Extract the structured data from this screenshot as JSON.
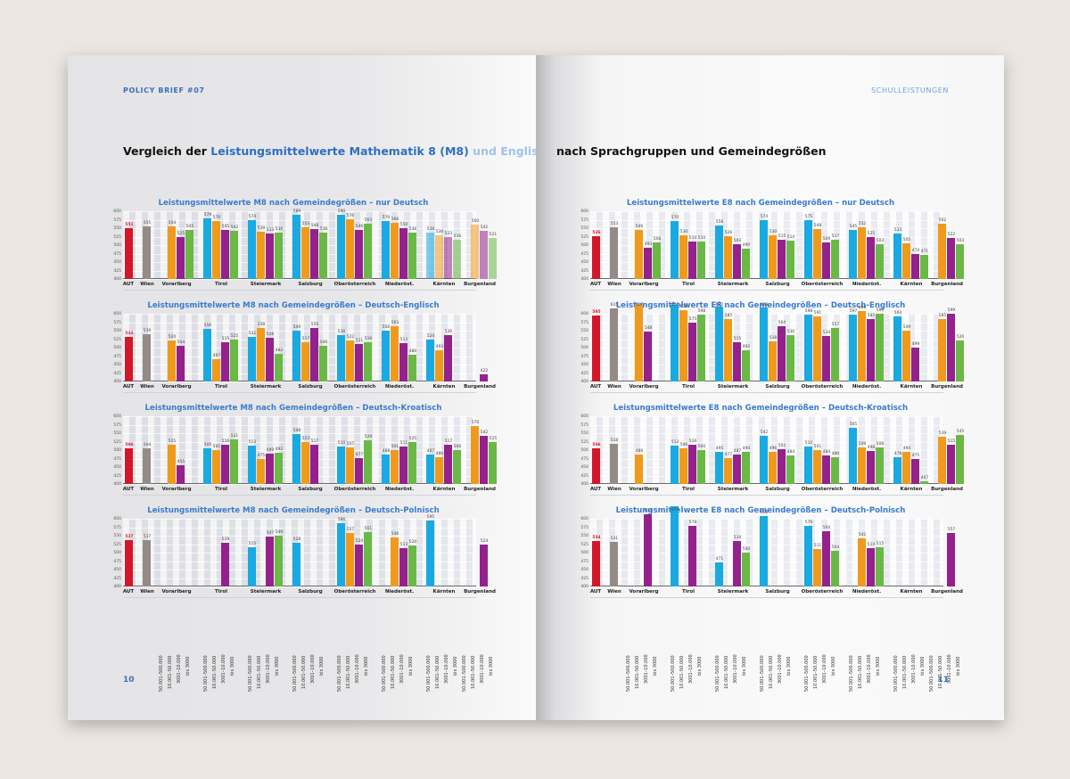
{
  "left_page": {
    "running_head": "POLICY BRIEF #07",
    "heading_part1": "Vergleich der ",
    "heading_part2": "Leistungsmittelwerte Mathematik 8 (M8)",
    "heading_part3": " und Englisch 8 (E8)",
    "page_number": "10"
  },
  "right_page": {
    "running_head": "SCHULLEISTUNGEN",
    "heading": "nach Sprachgruppen und Gemeindegrößen",
    "page_number": "11"
  },
  "legend": {
    "colors": {
      "AUT": "#d3172a",
      "Wien": "#958b86",
      "size_50001_500000": "#1aa9e0",
      "size_10001_50000": "#f09a1c",
      "size_3001_10000": "#94218c",
      "size_bis_3000": "#6ab845"
    },
    "size_classes": [
      "50.001–500.000",
      "10.001–50.000",
      "3001–10.000",
      "bis 3000"
    ]
  },
  "x_categories": [
    "AUT",
    "Wien",
    "Vorarlberg",
    "Tirol",
    "Steiermark",
    "Salzburg",
    "Oberösterreich",
    "Niederöst.",
    "Kärnten",
    "Burgenland"
  ],
  "y_ticks": [
    "600",
    "575",
    "550",
    "525",
    "500",
    "475",
    "450",
    "425",
    "400"
  ],
  "chart_data": [
    {
      "type": "bar",
      "title": "Leistungsmittelwerte M8 nach Gemeindegrößen – nur Deutsch",
      "ylim": [
        400,
        600
      ],
      "aut": 551,
      "wien": 555,
      "regions": [
        {
          "name": "Vorarlberg",
          "values": [
            null,
            554,
            525,
            545
          ]
        },
        {
          "name": "Tirol",
          "values": [
            579,
            570,
            545,
            542
          ]
        },
        {
          "name": "Steiermark",
          "values": [
            574,
            539,
            533,
            536
          ]
        },
        {
          "name": "Salzburg",
          "values": [
            589,
            553,
            548,
            538
          ]
        },
        {
          "name": "Oberösterreich",
          "values": [
            590,
            576,
            546,
            563
          ]
        },
        {
          "name": "Niederöst.",
          "values": [
            570,
            566,
            550,
            536
          ]
        },
        {
          "name": "Kärnten",
          "values": [
            538,
            530,
            523,
            516
          ]
        },
        {
          "name": "Burgenland",
          "values": [
            null,
            560,
            542,
            521
          ]
        }
      ]
    },
    {
      "type": "bar",
      "title": "Leistungsmittelwerte M8 nach Gemeindegrößen – Deutsch-Englisch",
      "ylim": [
        400,
        600
      ],
      "aut": 531,
      "wien": 539,
      "regions": [
        {
          "name": "Vorarlberg",
          "values": [
            null,
            520,
            504,
            null
          ]
        },
        {
          "name": "Tirol",
          "values": [
            556,
            467,
            515,
            525
          ]
        },
        {
          "name": "Steiermark",
          "values": [
            532,
            558,
            528,
            482
          ]
        },
        {
          "name": "Salzburg",
          "values": [
            549,
            517,
            559,
            506
          ]
        },
        {
          "name": "Oberösterreich",
          "values": [
            538,
            522,
            511,
            516
          ]
        },
        {
          "name": "Niederöst.",
          "values": [
            550,
            563,
            513,
            480
          ]
        },
        {
          "name": "Kärnten",
          "values": [
            524,
            493,
            536,
            null
          ]
        },
        {
          "name": "Burgenland",
          "values": [
            null,
            null,
            422,
            null
          ]
        }
      ]
    },
    {
      "type": "bar",
      "title": "Leistungsmittelwerte M8 nach Gemeindegrößen – Deutsch-Kroatisch",
      "ylim": [
        400,
        600
      ],
      "aut": 506,
      "wien": 504,
      "regions": [
        {
          "name": "Vorarlberg",
          "values": [
            null,
            515,
            455,
            null
          ]
        },
        {
          "name": "Tirol",
          "values": [
            505,
            501,
            516,
            531
          ]
        },
        {
          "name": "Steiermark",
          "values": [
            513,
            475,
            489,
            492
          ]
        },
        {
          "name": "Salzburg",
          "values": [
            548,
            523,
            517,
            null
          ]
        },
        {
          "name": "Oberösterreich",
          "values": [
            510,
            507,
            477,
            529
          ]
        },
        {
          "name": "Niederöst.",
          "values": [
            488,
            501,
            511,
            525
          ]
        },
        {
          "name": "Kärnten",
          "values": [
            487,
            480,
            517,
            500
          ]
        },
        {
          "name": "Burgenland",
          "values": [
            null,
            570,
            542,
            525
          ]
        }
      ]
    },
    {
      "type": "bar",
      "title": "Leistungsmittelwerte M8 nach Gemeindegrößen – Deutsch-Polnisch",
      "ylim": [
        400,
        600
      ],
      "aut": 537,
      "wien": 537,
      "regions": [
        {
          "name": "Vorarlberg",
          "values": [
            null,
            null,
            null,
            null
          ]
        },
        {
          "name": "Tirol",
          "values": [
            null,
            null,
            529,
            null
          ]
        },
        {
          "name": "Steiermark",
          "values": [
            515,
            null,
            547,
            549
          ]
        },
        {
          "name": "Salzburg",
          "values": [
            528,
            null,
            null,
            null
          ]
        },
        {
          "name": "Oberösterreich",
          "values": [
            586,
            557,
            524,
            561
          ]
        },
        {
          "name": "Niederöst.",
          "values": [
            null,
            546,
            513,
            520
          ]
        },
        {
          "name": "Kärnten",
          "values": [
            595,
            null,
            null,
            null
          ]
        },
        {
          "name": "Burgenland",
          "values": [
            null,
            null,
            524,
            null
          ]
        }
      ]
    },
    {
      "type": "bar",
      "title": "Leistungsmittelwerte E8 nach Gemeindegrößen – nur Deutsch",
      "ylim": [
        400,
        600
      ],
      "aut": 526,
      "wien": 553,
      "regions": [
        {
          "name": "Vorarlberg",
          "values": [
            null,
            546,
            493,
            508
          ]
        },
        {
          "name": "Tirol",
          "values": [
            570,
            530,
            510,
            510
          ]
        },
        {
          "name": "Steiermark",
          "values": [
            558,
            526,
            503,
            490
          ]
        },
        {
          "name": "Salzburg",
          "values": [
            574,
            530,
            515,
            514
          ]
        },
        {
          "name": "Oberösterreich",
          "values": [
            575,
            548,
            509,
            517
          ]
        },
        {
          "name": "Niederöst.",
          "values": [
            545,
            552,
            525,
            503
          ]
        },
        {
          "name": "Kärnten",
          "values": [
            533,
            505,
            474,
            471
          ]
        },
        {
          "name": "Burgenland",
          "values": [
            null,
            562,
            522,
            503
          ]
        }
      ]
    },
    {
      "type": "bar",
      "title": "Leistungsmittelwerte E8 nach Gemeindegrößen – Deutsch-Englisch",
      "ylim": [
        400,
        600
      ],
      "aut": 595,
      "wien": 615,
      "regions": [
        {
          "name": "Vorarlberg",
          "values": [
            null,
            627,
            548,
            null
          ]
        },
        {
          "name": "Tirol",
          "values": [
            627,
            610,
            575,
            598
          ]
        },
        {
          "name": "Steiermark",
          "values": [
            622,
            585,
            515,
            492
          ]
        },
        {
          "name": "Salzburg",
          "values": [
            618,
            518,
            564,
            536
          ]
        },
        {
          "name": "Oberösterreich",
          "values": [
            598,
            591,
            534,
            557
          ]
        },
        {
          "name": "Niederöst.",
          "values": [
            597,
            608,
            585,
            599
          ]
        },
        {
          "name": "Kärnten",
          "values": [
            593,
            549,
            499,
            null
          ]
        },
        {
          "name": "Burgenland",
          "values": [
            null,
            585,
            599,
            520
          ]
        }
      ]
    },
    {
      "type": "bar",
      "title": "Leistungsmittelwerte E8 nach Gemeindegrößen – Deutsch-Kroatisch",
      "ylim": [
        400,
        600
      ],
      "aut": 506,
      "wien": 518,
      "regions": [
        {
          "name": "Vorarlberg",
          "values": [
            null,
            486,
            null,
            null
          ]
        },
        {
          "name": "Tirol",
          "values": [
            512,
            506,
            516,
            500
          ]
        },
        {
          "name": "Steiermark",
          "values": [
            495,
            477,
            487,
            494
          ]
        },
        {
          "name": "Salzburg",
          "values": [
            542,
            496,
            502,
            484
          ]
        },
        {
          "name": "Oberösterreich",
          "values": [
            510,
            501,
            484,
            480
          ]
        },
        {
          "name": "Niederöst.",
          "values": [
            565,
            509,
            498,
            508
          ]
        },
        {
          "name": "Kärnten",
          "values": [
            478,
            494,
            475,
            407
          ]
        },
        {
          "name": "Burgenland",
          "values": [
            null,
            539,
            515,
            545
          ]
        }
      ]
    },
    {
      "type": "bar",
      "title": "Leistungsmittelwerte E8 nach Gemeindegrößen – Deutsch-Polnisch",
      "ylim": [
        400,
        600
      ],
      "aut": 534,
      "wien": 531,
      "regions": [
        {
          "name": "Vorarlberg",
          "values": [
            null,
            null,
            614,
            null
          ]
        },
        {
          "name": "Tirol",
          "values": [
            679,
            null,
            578,
            null
          ]
        },
        {
          "name": "Steiermark",
          "values": [
            471,
            null,
            534,
            500
          ]
        },
        {
          "name": "Salzburg",
          "values": [
            608,
            null,
            null,
            null
          ]
        },
        {
          "name": "Oberösterreich",
          "values": [
            579,
            511,
            564,
            504
          ]
        },
        {
          "name": "Niederöst.",
          "values": [
            null,
            542,
            514,
            515
          ]
        },
        {
          "name": "Kärnten",
          "values": [
            null,
            null,
            null,
            null
          ]
        },
        {
          "name": "Burgenland",
          "values": [
            null,
            null,
            557,
            null
          ]
        }
      ]
    }
  ]
}
